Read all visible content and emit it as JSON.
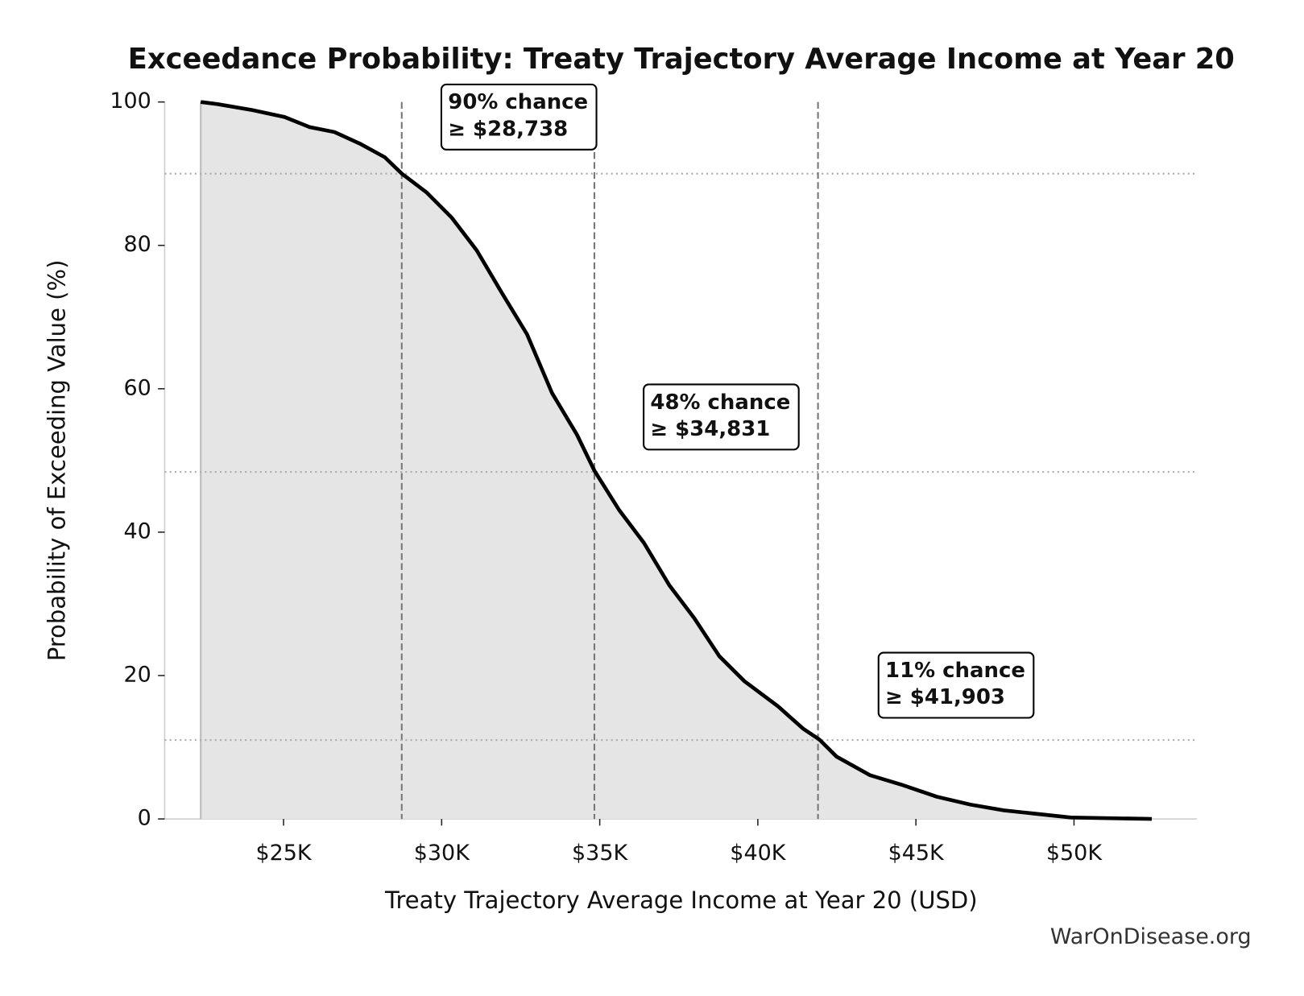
{
  "chart_data": {
    "type": "line",
    "title": "Exceedance Probability: Treaty Trajectory Average Income at Year 20",
    "x_label": "Treaty Trajectory Average Income at Year 20 (USD)",
    "y_label": "Probability of Exceeding Value (%)",
    "footer": "WarOnDisease.org",
    "xlim": [
      21240,
      53890
    ],
    "ylim": [
      0,
      100
    ],
    "xticks": [
      {
        "value": 25000,
        "label": "$25K"
      },
      {
        "value": 30000,
        "label": "$30K"
      },
      {
        "value": 35000,
        "label": "$35K"
      },
      {
        "value": 40000,
        "label": "$40K"
      },
      {
        "value": 45000,
        "label": "$45K"
      },
      {
        "value": 50000,
        "label": "$50K"
      }
    ],
    "yticks": [
      0,
      20,
      40,
      60,
      80,
      100
    ],
    "x": [
      22380,
      22910,
      23970,
      25030,
      25820,
      26610,
      27410,
      28200,
      28740,
      29520,
      30310,
      31110,
      31900,
      32700,
      33490,
      34280,
      34830,
      35610,
      36400,
      37200,
      37990,
      38780,
      39580,
      40640,
      41430,
      41940,
      42490,
      43550,
      44600,
      45660,
      46720,
      47780,
      48840,
      49900,
      52460
    ],
    "series": [
      {
        "color": "#000000",
        "fill": "#e5e5e5",
        "values": [
          100,
          99.7,
          98.9,
          97.9,
          96.5,
          95.8,
          94.2,
          92.3,
          90,
          87.4,
          83.9,
          79.3,
          73.4,
          67.6,
          59.4,
          53.6,
          48.6,
          43.1,
          38.5,
          32.6,
          28.0,
          22.7,
          19.2,
          15.7,
          12.6,
          11.1,
          8.7,
          6.1,
          4.7,
          3.1,
          2.0,
          1.2,
          0.7,
          0.2,
          0
        ]
      }
    ],
    "annotations": [
      {
        "text": [
          "90% chance",
          "≥ $28,738"
        ],
        "x": 28738,
        "y": 90
      },
      {
        "text": [
          "48% chance",
          "≥ $34,831"
        ],
        "x": 34831,
        "y": 48.4
      },
      {
        "text": [
          "11% chance",
          "≥ $41,903"
        ],
        "x": 41903,
        "y": 11
      }
    ]
  }
}
